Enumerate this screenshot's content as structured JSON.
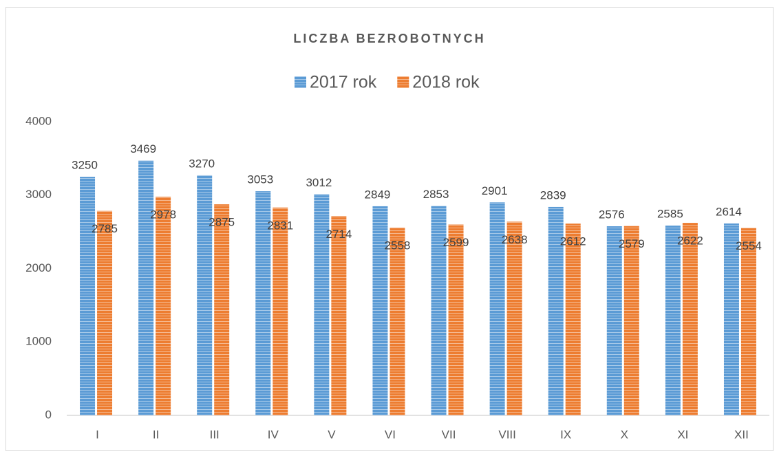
{
  "chart_data": {
    "type": "bar",
    "title": "LICZBA BEZROBOTNYCH",
    "categories": [
      "I",
      "II",
      "III",
      "IV",
      "V",
      "VI",
      "VII",
      "VIII",
      "IX",
      "X",
      "XI",
      "XII"
    ],
    "series": [
      {
        "name": "2017 rok",
        "color": "#5b9bd5",
        "values": [
          3250,
          3469,
          3270,
          3053,
          3012,
          2849,
          2853,
          2901,
          2839,
          2576,
          2585,
          2614
        ]
      },
      {
        "name": "2018 rok",
        "color": "#ed7d31",
        "values": [
          2785,
          2978,
          2875,
          2831,
          2714,
          2558,
          2599,
          2638,
          2612,
          2579,
          2622,
          2554
        ]
      }
    ],
    "ylim": [
      0,
      4000
    ],
    "yticks": [
      0,
      1000,
      2000,
      3000,
      4000
    ],
    "grid": false,
    "legend": "top"
  }
}
